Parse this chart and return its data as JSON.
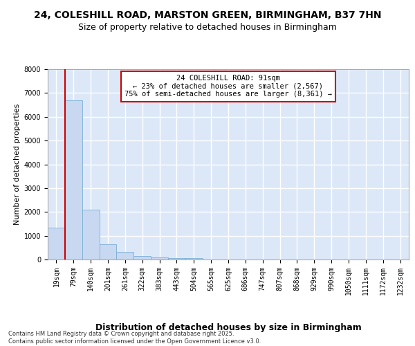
{
  "title_line1": "24, COLESHILL ROAD, MARSTON GREEN, BIRMINGHAM, B37 7HN",
  "title_line2": "Size of property relative to detached houses in Birmingham",
  "xlabel": "Distribution of detached houses by size in Birmingham",
  "ylabel": "Number of detached properties",
  "categories": [
    "19sqm",
    "79sqm",
    "140sqm",
    "201sqm",
    "261sqm",
    "322sqm",
    "383sqm",
    "443sqm",
    "504sqm",
    "565sqm",
    "625sqm",
    "686sqm",
    "747sqm",
    "807sqm",
    "868sqm",
    "929sqm",
    "990sqm",
    "1050sqm",
    "1111sqm",
    "1172sqm",
    "1232sqm"
  ],
  "values": [
    1350,
    6700,
    2100,
    650,
    310,
    150,
    80,
    55,
    55,
    0,
    0,
    0,
    0,
    0,
    0,
    0,
    0,
    0,
    0,
    0,
    0
  ],
  "bar_color": "#c8d8f0",
  "bar_edge_color": "#7aafd4",
  "vline_color": "#cc0000",
  "vline_x": 0.5,
  "annotation_text": "24 COLESHILL ROAD: 91sqm\n← 23% of detached houses are smaller (2,567)\n75% of semi-detached houses are larger (8,361) →",
  "annotation_box_facecolor": "#ffffff",
  "annotation_box_edgecolor": "#cc0000",
  "ylim": [
    0,
    8000
  ],
  "yticks": [
    0,
    1000,
    2000,
    3000,
    4000,
    5000,
    6000,
    7000,
    8000
  ],
  "plot_bg": "#dce8f8",
  "fig_bg": "#ffffff",
  "grid_color": "#ffffff",
  "footer_text": "Contains HM Land Registry data © Crown copyright and database right 2025.\nContains public sector information licensed under the Open Government Licence v3.0.",
  "title_fontsize": 10,
  "subtitle_fontsize": 9,
  "ylabel_fontsize": 8,
  "xlabel_fontsize": 9,
  "tick_fontsize": 7,
  "annotation_fontsize": 7.5,
  "footer_fontsize": 6
}
